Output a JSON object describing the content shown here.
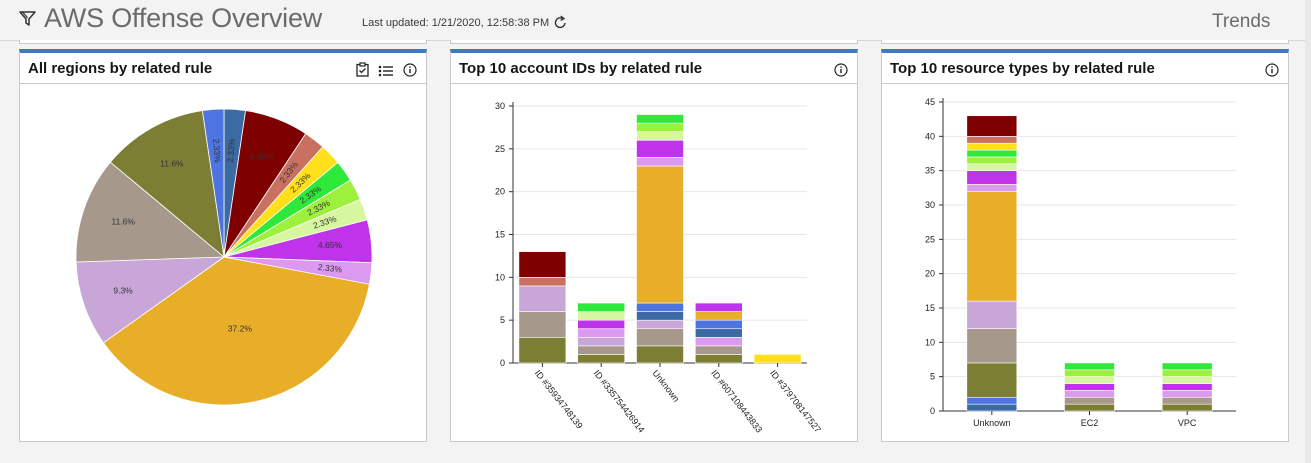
{
  "header": {
    "title": "AWS Offense Overview",
    "last_updated": "Last updated: 1/21/2020, 12:58:38 PM",
    "trends_label": "Trends"
  },
  "colors": {
    "panel_top_border": "#4178be",
    "palette": [
      "#7f0000",
      "#c97060",
      "#ffe01a",
      "#2ee83a",
      "#9df03c",
      "#d6f6a0",
      "#bf33ea",
      "#db9af0",
      "#e9ae28",
      "#c9a6d8",
      "#a6988a",
      "#7c7e33",
      "#3e6fa0",
      "#4d74e0"
    ]
  },
  "panels": [
    {
      "title": "All regions by related rule",
      "icons": [
        "clipboard-check-icon",
        "list-icon",
        "info-icon"
      ],
      "chart_data": {
        "type": "pie",
        "slices": [
          {
            "label": "2.33%",
            "value": 2.33,
            "color": "#3b6aa4"
          },
          {
            "label": "6.98%",
            "value": 6.98,
            "color": "#7f0000"
          },
          {
            "label": "2.33%",
            "value": 2.33,
            "color": "#c97060"
          },
          {
            "label": "2.33%",
            "value": 2.33,
            "color": "#ffe01a"
          },
          {
            "label": "2.33%",
            "value": 2.33,
            "color": "#2ee83a"
          },
          {
            "label": "2.33%",
            "value": 2.33,
            "color": "#9df03c"
          },
          {
            "label": "2.33%",
            "value": 2.33,
            "color": "#d6f6a0"
          },
          {
            "label": "4.65%",
            "value": 4.65,
            "color": "#bf33ea"
          },
          {
            "label": "2.33%",
            "value": 2.33,
            "color": "#db9af0"
          },
          {
            "label": "37.2%",
            "value": 37.2,
            "color": "#e9ae28"
          },
          {
            "label": "9.3%",
            "value": 9.3,
            "color": "#c9a6d8"
          },
          {
            "label": "11.6%",
            "value": 11.6,
            "color": "#a6988a"
          },
          {
            "label": "11.6%",
            "value": 11.6,
            "color": "#7c7e33"
          },
          {
            "label": "2.33%",
            "value": 2.33,
            "color": "#4d74e0"
          }
        ]
      }
    },
    {
      "title": "Top 10 account IDs by related rule",
      "icons": [
        "info-icon"
      ],
      "chart_data": {
        "type": "bar",
        "stacked": true,
        "categories": [
          "ID #35934748139",
          "ID #335754426914",
          "Unknown",
          "ID #607108443833",
          "ID #379708147527"
        ],
        "ylim": [
          0,
          30
        ],
        "yticks": [
          0,
          5,
          10,
          15,
          20,
          25,
          30
        ],
        "grid": true,
        "stacks": [
          [
            {
              "v": 3,
              "c": "#7c7e33"
            },
            {
              "v": 3,
              "c": "#a6988a"
            },
            {
              "v": 3,
              "c": "#c9a6d8"
            },
            {
              "v": 1,
              "c": "#c97060"
            },
            {
              "v": 3,
              "c": "#7f0000"
            }
          ],
          [
            {
              "v": 1,
              "c": "#7c7e33"
            },
            {
              "v": 1,
              "c": "#a6988a"
            },
            {
              "v": 1,
              "c": "#c9a6d8"
            },
            {
              "v": 1,
              "c": "#db9af0"
            },
            {
              "v": 1,
              "c": "#bf33ea"
            },
            {
              "v": 1,
              "c": "#d6f6a0"
            },
            {
              "v": 1,
              "c": "#2ee83a"
            }
          ],
          [
            {
              "v": 2,
              "c": "#7c7e33"
            },
            {
              "v": 2,
              "c": "#a6988a"
            },
            {
              "v": 1,
              "c": "#c9a6d8"
            },
            {
              "v": 1,
              "c": "#3b6aa4"
            },
            {
              "v": 1,
              "c": "#4d74e0"
            },
            {
              "v": 16,
              "c": "#e9ae28"
            },
            {
              "v": 1,
              "c": "#db9af0"
            },
            {
              "v": 2,
              "c": "#bf33ea"
            },
            {
              "v": 1,
              "c": "#d6f6a0"
            },
            {
              "v": 1,
              "c": "#9df03c"
            },
            {
              "v": 1,
              "c": "#2ee83a"
            }
          ],
          [
            {
              "v": 1,
              "c": "#7c7e33"
            },
            {
              "v": 1,
              "c": "#a6988a"
            },
            {
              "v": 1,
              "c": "#db9af0"
            },
            {
              "v": 1,
              "c": "#3b6aa4"
            },
            {
              "v": 1,
              "c": "#4d74e0"
            },
            {
              "v": 1,
              "c": "#e9ae28"
            },
            {
              "v": 1,
              "c": "#bf33ea"
            }
          ],
          [
            {
              "v": 1,
              "c": "#ffe01a"
            }
          ]
        ]
      }
    },
    {
      "title": "Top 10 resource types by related rule",
      "icons": [
        "info-icon"
      ],
      "chart_data": {
        "type": "bar",
        "stacked": true,
        "categories": [
          "Unknown",
          "EC2",
          "VPC"
        ],
        "ylim": [
          0,
          45
        ],
        "yticks": [
          0,
          5,
          10,
          15,
          20,
          25,
          30,
          35,
          40,
          45
        ],
        "grid": true,
        "stacks": [
          [
            {
              "v": 1,
              "c": "#3b6aa4"
            },
            {
              "v": 1,
              "c": "#4d74e0"
            },
            {
              "v": 5,
              "c": "#7c7e33"
            },
            {
              "v": 5,
              "c": "#a6988a"
            },
            {
              "v": 4,
              "c": "#c9a6d8"
            },
            {
              "v": 16,
              "c": "#e9ae28"
            },
            {
              "v": 1,
              "c": "#db9af0"
            },
            {
              "v": 2,
              "c": "#bf33ea"
            },
            {
              "v": 1,
              "c": "#d6f6a0"
            },
            {
              "v": 1,
              "c": "#9df03c"
            },
            {
              "v": 1,
              "c": "#2ee83a"
            },
            {
              "v": 1,
              "c": "#ffe01a"
            },
            {
              "v": 1,
              "c": "#c97060"
            },
            {
              "v": 3,
              "c": "#7f0000"
            }
          ],
          [
            {
              "v": 1,
              "c": "#7c7e33"
            },
            {
              "v": 1,
              "c": "#a6988a"
            },
            {
              "v": 1,
              "c": "#db9af0"
            },
            {
              "v": 1,
              "c": "#bf33ea"
            },
            {
              "v": 1,
              "c": "#d6f6a0"
            },
            {
              "v": 1,
              "c": "#9df03c"
            },
            {
              "v": 1,
              "c": "#2ee83a"
            }
          ],
          [
            {
              "v": 1,
              "c": "#7c7e33"
            },
            {
              "v": 1,
              "c": "#a6988a"
            },
            {
              "v": 1,
              "c": "#db9af0"
            },
            {
              "v": 1,
              "c": "#bf33ea"
            },
            {
              "v": 1,
              "c": "#d6f6a0"
            },
            {
              "v": 1,
              "c": "#9df03c"
            },
            {
              "v": 1,
              "c": "#2ee83a"
            }
          ]
        ]
      }
    }
  ]
}
